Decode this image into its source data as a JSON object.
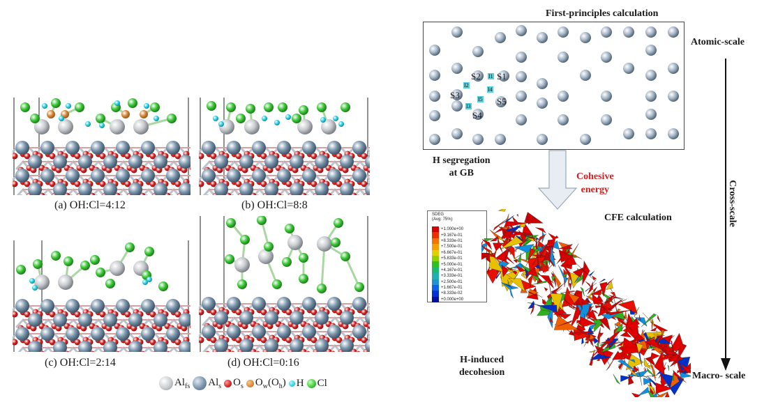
{
  "panels": {
    "a": {
      "caption": "(a) OH:Cl=4:12"
    },
    "b": {
      "caption": "(b) OH:Cl=8:8"
    },
    "c": {
      "caption": "(c) OH:Cl=2:14"
    },
    "d": {
      "caption": "(d) OH:Cl=0:16"
    }
  },
  "legend": {
    "al_fs": {
      "base": "Al",
      "sub": "fs"
    },
    "al_s": {
      "base": "Al",
      "sub": "s"
    },
    "o_s": {
      "base": "O",
      "sub": "s"
    },
    "o_w": {
      "base": "O",
      "sub": "w",
      "paren_base": "(O",
      "paren_sub": "h",
      "close": ")"
    },
    "h": {
      "text": "H"
    },
    "cl": {
      "text": "Cl"
    },
    "colors": {
      "al_fs": "#c8cbcf",
      "al_s": "#7a94ab",
      "o_s": "#d42323",
      "o_w": "#d98a3a",
      "h": "#2fd3e6",
      "cl": "#3ec83a"
    }
  },
  "right": {
    "title": "First-principles calculation",
    "atomic_scale": "Atomic-scale",
    "cross_scale": "Cross-scale",
    "macro_scale": "Macro- scale",
    "h_seg_line1": "H segregation",
    "h_seg_line2": "at GB",
    "cohesive_line1": "Cohesive",
    "cohesive_line2": "energy",
    "cfe": "CFE calculation",
    "h_induced_line1": "H-induced",
    "h_induced_line2": "decohesion",
    "sites": [
      "S1",
      "S2",
      "S3",
      "S4",
      "S5"
    ],
    "hsites": [
      "I1",
      "I2",
      "I3",
      "I4",
      "I5"
    ]
  },
  "scale_legend": {
    "title_line1": "SDEG",
    "title_line2": "(Avg: 75%)",
    "values": [
      "+1.000e+00",
      "+9.167e-01",
      "+8.333e-01",
      "+7.500e-01",
      "+6.667e-01",
      "+5.833e-01",
      "+5.000e-01",
      "+4.167e-01",
      "+3.333e-01",
      "+2.500e-01",
      "+1.667e-01",
      "+8.333e-02",
      "+0.000e+00"
    ],
    "colors": [
      "#d40000",
      "#e83000",
      "#f47000",
      "#f0a000",
      "#e0d000",
      "#90d000",
      "#30c020",
      "#20b870",
      "#20b0b0",
      "#2090d8",
      "#1060e8",
      "#0030d8",
      "#0010a0"
    ]
  }
}
